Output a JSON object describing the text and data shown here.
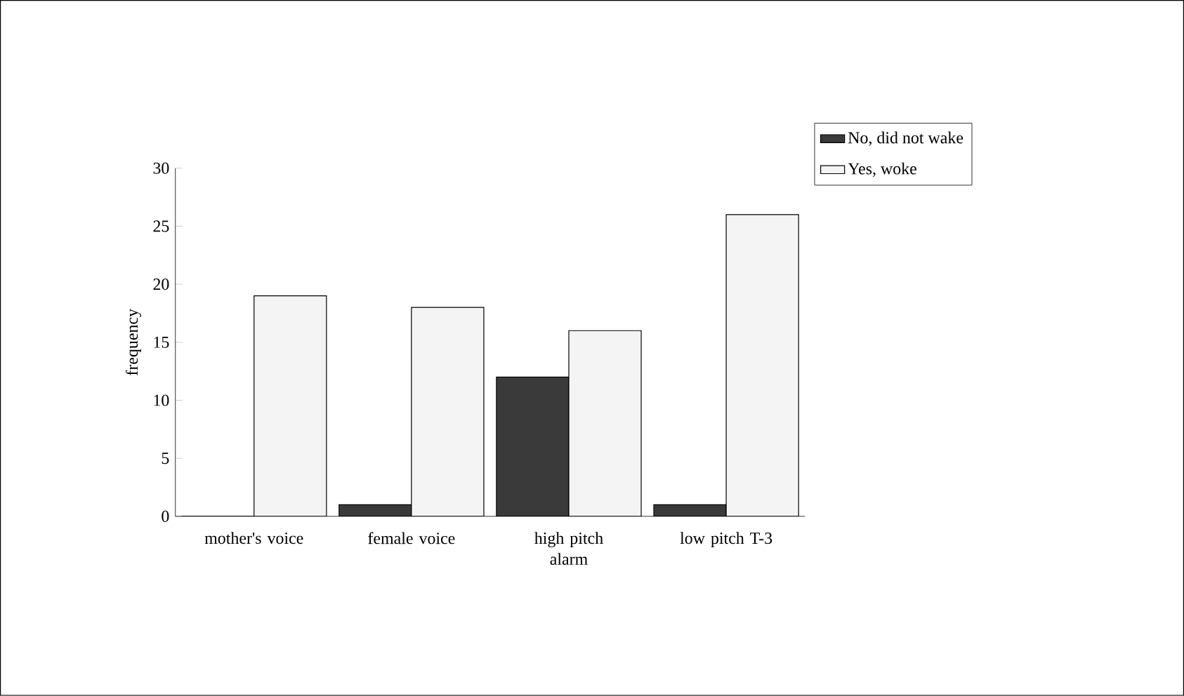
{
  "chart_data": {
    "type": "bar",
    "ylabel": "frequency",
    "categories": [
      "mother's voice",
      "female voice",
      "high pitch alarm",
      "low pitch T-3"
    ],
    "series": [
      {
        "name": "No, did not wake",
        "color": "#3a3a3a",
        "values": [
          0,
          1,
          12,
          1
        ]
      },
      {
        "name": "Yes, woke",
        "color": "#f4f4f4",
        "values": [
          19,
          18,
          16,
          26
        ]
      }
    ],
    "ylim": [
      0,
      30
    ],
    "yticks": [
      0,
      5,
      10,
      15,
      20,
      25,
      30
    ],
    "grid": false,
    "legend": "right"
  }
}
